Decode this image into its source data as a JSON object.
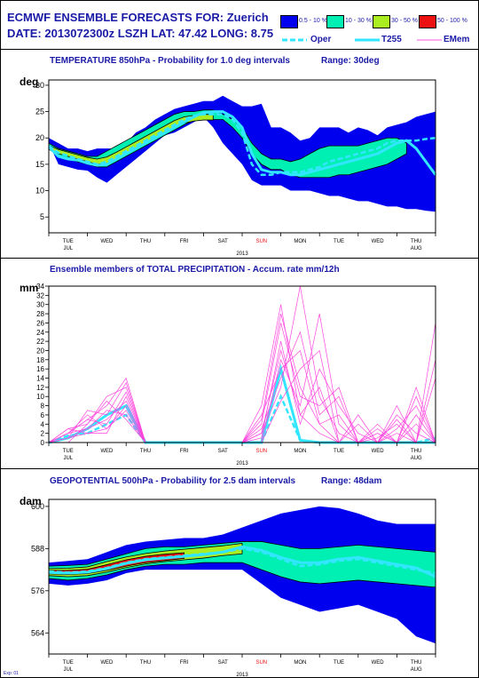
{
  "header": {
    "line1": "ECMWF ENSEMBLE FORECASTS FOR:  Zuerich",
    "line2": "DATE: 2013072300z  LSZH  LAT: 47.42  LONG: 8.75"
  },
  "legend": {
    "bins": [
      {
        "label": "0.5 - 10 %",
        "color": "#0000ee"
      },
      {
        "label": "10 - 30 %",
        "color": "#00f0b4"
      },
      {
        "label": "30 - 50 %",
        "color": "#aaee22"
      },
      {
        "label": "50 - 100 %",
        "color": "#ee1111"
      }
    ],
    "lines": [
      {
        "label": "Oper",
        "color": "#33e6ff"
      },
      {
        "label": "T255",
        "color": "#33e6ff"
      },
      {
        "label": "EMem",
        "color": "#ff55dd"
      }
    ]
  },
  "panels": {
    "temp": {
      "title": "TEMPERATURE 850hPa - Probability for 1.0 deg intervals",
      "range": "Range: 30deg",
      "unit": "deg"
    },
    "precip": {
      "title": "Ensemble members of TOTAL PRECIPITATION - Accum. rate mm/12h",
      "unit": "mm"
    },
    "geo": {
      "title": "GEOPOTENTIAL 500hPa - Probability for 2.5 dam intervals",
      "range": "Range: 48dam",
      "unit": "dam"
    }
  },
  "footer": "Exp: 01",
  "chart_data": [
    {
      "type": "area",
      "title": "TEMPERATURE 850hPa - Probability for 1.0 deg intervals",
      "ylabel": "deg",
      "ylim": [
        2,
        31
      ],
      "yticks": [
        5,
        10,
        15,
        20,
        25,
        30
      ],
      "categories": [
        "TUE",
        "WED",
        "THU",
        "FRI",
        "SAT",
        "SUN",
        "MON",
        "TUE",
        "WED",
        "THU"
      ],
      "category_sub": {
        "0": "JUL",
        "9": "AUG"
      },
      "highlight_category": 5,
      "year": "2013",
      "x": [
        0,
        0.25,
        0.5,
        0.75,
        1,
        1.25,
        1.5,
        1.75,
        2,
        2.25,
        2.5,
        2.75,
        3,
        3.25,
        3.5,
        3.75,
        4,
        4.25,
        4.5,
        4.75,
        5,
        5.25,
        5.5,
        5.75,
        6,
        6.25,
        6.5,
        6.75,
        7,
        7.25,
        7.5,
        7.75,
        8,
        8.25,
        8.5,
        8.75,
        9,
        9.25,
        9.5,
        9.75,
        10
      ],
      "bands": {
        "outer": {
          "low": [
            19,
            15,
            14.5,
            14,
            13.8,
            12.5,
            11.5,
            13,
            14.5,
            16,
            17.5,
            19,
            20.5,
            21,
            22,
            23,
            24,
            22,
            19,
            17,
            15,
            12,
            11,
            11,
            11,
            10,
            10,
            10,
            9.5,
            9,
            9,
            8.5,
            8,
            8,
            7.5,
            7,
            7,
            6.5,
            6.5,
            6.2,
            6
          ],
          "high": [
            20,
            19,
            18,
            18,
            17.5,
            18,
            18,
            18,
            19,
            21,
            22,
            23.5,
            24.5,
            25.5,
            26,
            26.5,
            27,
            27,
            28,
            27,
            26,
            26,
            26.5,
            22,
            22,
            21,
            19.5,
            20,
            22,
            22,
            22,
            21,
            22,
            21.5,
            20.5,
            22,
            22.5,
            23,
            24,
            24.5,
            25
          ]
        },
        "mid": {
          "low": [
            18,
            16.5,
            16,
            15.5,
            15,
            14.5,
            14.5,
            15.5,
            16.5,
            17.5,
            18.5,
            19.5,
            20.5,
            21.5,
            22.5,
            23.3,
            23.5,
            23.5,
            23.5,
            22,
            20,
            17,
            15,
            14,
            14,
            13,
            12.5,
            12.5,
            12.5,
            12.5,
            13,
            13,
            13.5,
            14,
            14.5,
            15,
            16,
            17,
            null,
            null,
            null
          ],
          "high": [
            19,
            18,
            17.5,
            17,
            16.5,
            16.5,
            17.5,
            18.5,
            19.5,
            20.5,
            21.5,
            22.5,
            23.5,
            24.5,
            25,
            25,
            25.3,
            25.3,
            24.5,
            23.5,
            22,
            19,
            17,
            16,
            16,
            15.5,
            16,
            17,
            18,
            18.5,
            18.5,
            18.5,
            18.5,
            19,
            19.5,
            20,
            20,
            19,
            null,
            null,
            null
          ]
        },
        "high": {
          "low": [
            17.8,
            17,
            16.5,
            16,
            15.5,
            15,
            15.2,
            16,
            17,
            18,
            19,
            20,
            21,
            22,
            22.8,
            23.2,
            23.4,
            23.4,
            null,
            null,
            null,
            null,
            null,
            null,
            null,
            null,
            null,
            null,
            null,
            null,
            null,
            null,
            null,
            null,
            null,
            null,
            null,
            null,
            null,
            null,
            null
          ],
          "high": [
            18.6,
            17.8,
            17.3,
            16.8,
            16.3,
            16,
            16.4,
            17.3,
            18.3,
            19.3,
            20.3,
            21.3,
            22.3,
            23.3,
            24,
            24.3,
            24.5,
            24.4,
            null,
            null,
            null,
            null,
            null,
            null,
            null,
            null,
            null,
            null,
            null,
            null,
            null,
            null,
            null,
            null,
            null,
            null,
            null,
            null,
            null,
            null,
            null
          ]
        }
      },
      "series": [
        {
          "name": "Oper",
          "values": [
            18.5,
            17.2,
            16.6,
            16,
            15.5,
            15,
            15.5,
            16.5,
            17.5,
            18.5,
            19.5,
            20.5,
            21.5,
            22.5,
            23.5,
            24.2,
            24.5,
            24.5,
            24.5,
            23.5,
            21,
            15,
            13,
            13,
            13.5,
            13.5,
            13.5,
            14,
            14.5,
            15.5,
            16,
            16.5,
            17,
            17.5,
            18,
            19,
            19.5,
            19.5,
            19.5,
            19.8,
            20
          ]
        },
        {
          "name": "T255",
          "values": [
            18.3,
            16.5,
            16,
            15.8,
            15.2,
            14.8,
            15,
            16,
            17,
            18,
            19,
            20,
            21,
            22,
            23,
            24,
            24.8,
            25,
            25,
            24,
            22,
            17,
            14,
            13.5,
            13.5,
            13,
            13,
            13.5,
            14,
            14.5,
            15,
            15.5,
            16,
            16.5,
            17,
            18,
            19,
            19.5,
            18,
            15.5,
            13
          ]
        }
      ]
    },
    {
      "type": "line",
      "title": "Ensemble members of TOTAL PRECIPITATION - Accum. rate mm/12h",
      "ylabel": "mm",
      "ylim": [
        0,
        34
      ],
      "yticks": [
        0,
        2,
        4,
        6,
        8,
        10,
        12,
        14,
        16,
        18,
        20,
        22,
        24,
        26,
        28,
        30,
        32,
        34
      ],
      "categories": [
        "TUE",
        "WED",
        "THU",
        "FRI",
        "SAT",
        "SUN",
        "MON",
        "TUE",
        "WED",
        "THU"
      ],
      "category_sub": {
        "0": "JUL",
        "9": "AUG"
      },
      "highlight_category": 5,
      "year": "2013",
      "x": [
        0,
        0.5,
        1,
        1.5,
        2,
        2.5,
        3,
        3.5,
        4,
        4.5,
        5,
        5.5,
        6,
        6.5,
        7,
        7.5,
        8,
        8.5,
        9,
        9.5,
        10
      ],
      "series": [
        {
          "name": "T255",
          "values": [
            0,
            1,
            3,
            6,
            8,
            0,
            0,
            0,
            0,
            0,
            0,
            0,
            16,
            0.5,
            0,
            0,
            0,
            0,
            0,
            0,
            0
          ]
        },
        {
          "name": "Oper",
          "values": [
            0,
            1.5,
            2,
            4,
            6,
            0,
            0,
            0,
            0,
            0,
            0,
            0,
            10,
            0.5,
            0,
            0,
            0,
            0,
            0,
            0,
            1
          ]
        },
        {
          "name": "EMem",
          "values": [
            0,
            2,
            5,
            8,
            14,
            0,
            0,
            0,
            0,
            0,
            0,
            8,
            30,
            6,
            2,
            0,
            0,
            1,
            4,
            0,
            0
          ]
        },
        {
          "name": "EMem",
          "values": [
            0,
            3,
            4,
            10,
            12,
            0,
            0,
            0,
            0,
            0,
            0,
            5,
            28,
            12,
            4,
            0,
            0,
            0,
            6,
            2,
            0
          ]
        },
        {
          "name": "EMem",
          "values": [
            0,
            1,
            7,
            6,
            13,
            0,
            0,
            0,
            0,
            0,
            0,
            2,
            12,
            34,
            10,
            2,
            0,
            0,
            3,
            8,
            0
          ]
        },
        {
          "name": "EMem",
          "values": [
            0,
            2,
            3,
            5,
            9,
            0,
            0,
            0,
            0,
            0,
            0,
            0,
            18,
            8,
            28,
            4,
            0,
            2,
            0,
            12,
            0
          ]
        },
        {
          "name": "EMem",
          "values": [
            0,
            1,
            2,
            3,
            7,
            0,
            0,
            0,
            0,
            0,
            0,
            1,
            22,
            4,
            16,
            8,
            2,
            0,
            5,
            0,
            26
          ]
        },
        {
          "name": "EMem",
          "values": [
            0,
            2,
            5,
            4,
            11,
            0,
            0,
            0,
            0,
            0,
            0,
            3,
            14,
            24,
            6,
            10,
            0,
            4,
            0,
            6,
            0
          ]
        },
        {
          "name": "EMem",
          "values": [
            0,
            1,
            3,
            7,
            6,
            0,
            0,
            0,
            0,
            0,
            0,
            0,
            9,
            16,
            20,
            0,
            6,
            0,
            2,
            0,
            14
          ]
        },
        {
          "name": "EMem",
          "values": [
            0,
            3,
            2,
            2,
            10,
            0,
            0,
            0,
            0,
            0,
            0,
            4,
            26,
            10,
            8,
            12,
            0,
            3,
            0,
            10,
            0
          ]
        },
        {
          "name": "EMem",
          "values": [
            0,
            0,
            4,
            9,
            5,
            0,
            0,
            0,
            0,
            0,
            0,
            2,
            20,
            6,
            12,
            0,
            4,
            0,
            8,
            0,
            18
          ]
        },
        {
          "name": "EMem",
          "values": [
            0,
            2,
            6,
            3,
            8,
            0,
            0,
            0,
            0,
            0,
            0,
            6,
            16,
            20,
            4,
            6,
            0,
            2,
            0,
            4,
            0
          ]
        }
      ]
    },
    {
      "type": "area",
      "title": "GEOPOTENTIAL 500hPa - Probability for 2.5 dam intervals",
      "ylabel": "dam",
      "ylim": [
        558,
        602
      ],
      "yticks": [
        564,
        576,
        588,
        600
      ],
      "categories": [
        "TUE",
        "WED",
        "THU",
        "FRI",
        "SAT",
        "SUN",
        "MON",
        "TUE",
        "WED",
        "THU"
      ],
      "category_sub": {
        "0": "JUL",
        "9": "AUG"
      },
      "highlight_category": 5,
      "year": "2013",
      "x": [
        0,
        0.5,
        1,
        1.5,
        2,
        2.5,
        3,
        3.5,
        4,
        4.5,
        5,
        5.5,
        6,
        6.5,
        7,
        7.5,
        8,
        8.5,
        9,
        9.5,
        10
      ],
      "bands": {
        "outer": {
          "low": [
            578,
            577.5,
            578,
            579,
            581,
            582,
            582,
            582,
            582,
            582,
            582,
            578,
            574,
            572,
            570,
            571,
            572,
            570,
            568,
            563,
            561
          ],
          "high": [
            584,
            584.5,
            585,
            587,
            589,
            590,
            590.5,
            591,
            591,
            592,
            594,
            596,
            598,
            599,
            600,
            599.5,
            598,
            596,
            595,
            595,
            595
          ]
        },
        "mid": {
          "low": [
            579.5,
            579,
            579.5,
            580.5,
            582,
            583,
            583.5,
            583.5,
            584,
            584,
            584,
            582,
            580,
            578.5,
            578,
            578.5,
            579,
            578.5,
            578,
            577.5,
            577
          ],
          "high": [
            583,
            583.2,
            583.5,
            585,
            586.5,
            588,
            588.5,
            588.5,
            589,
            589.5,
            590,
            590,
            589,
            588,
            588,
            588.5,
            589,
            588.5,
            588,
            587.5,
            587
          ]
        },
        "high": {
          "low": [
            580.3,
            580,
            580.3,
            581.3,
            582.6,
            583.6,
            584.3,
            584.8,
            585.3,
            586,
            586.5,
            null,
            null,
            null,
            null,
            null,
            null,
            null,
            null,
            null,
            null
          ],
          "high": [
            582.3,
            582.4,
            582.8,
            584.3,
            585.6,
            586.6,
            587.3,
            587.8,
            588.3,
            588.8,
            589.5,
            null,
            null,
            null,
            null,
            null,
            null,
            null,
            null,
            null,
            null
          ]
        },
        "top": {
          "low": [
            580.8,
            580.6,
            580.9,
            581.8,
            583,
            584,
            584.6,
            585.2,
            null,
            null,
            null,
            null,
            null,
            null,
            null,
            null,
            null,
            null,
            null,
            null,
            null
          ],
          "high": [
            581.8,
            581.8,
            582.1,
            583.4,
            584.8,
            585.8,
            586.4,
            586.8,
            null,
            null,
            null,
            null,
            null,
            null,
            null,
            null,
            null,
            null,
            null,
            null,
            null
          ]
        }
      },
      "series": [
        {
          "name": "Oper",
          "values": [
            581.5,
            581.2,
            581.5,
            582.5,
            584,
            585,
            585.5,
            586,
            586.5,
            587,
            588,
            587,
            585,
            583,
            583.5,
            584.5,
            585,
            584,
            583,
            582,
            581
          ]
        },
        {
          "name": "T255",
          "values": [
            581.2,
            581,
            581.3,
            582.3,
            583.8,
            584.8,
            585.3,
            585.8,
            586.3,
            587,
            588.5,
            587.5,
            585.5,
            584,
            584,
            585,
            585.5,
            584.5,
            583.5,
            582.5,
            580
          ]
        }
      ]
    }
  ]
}
